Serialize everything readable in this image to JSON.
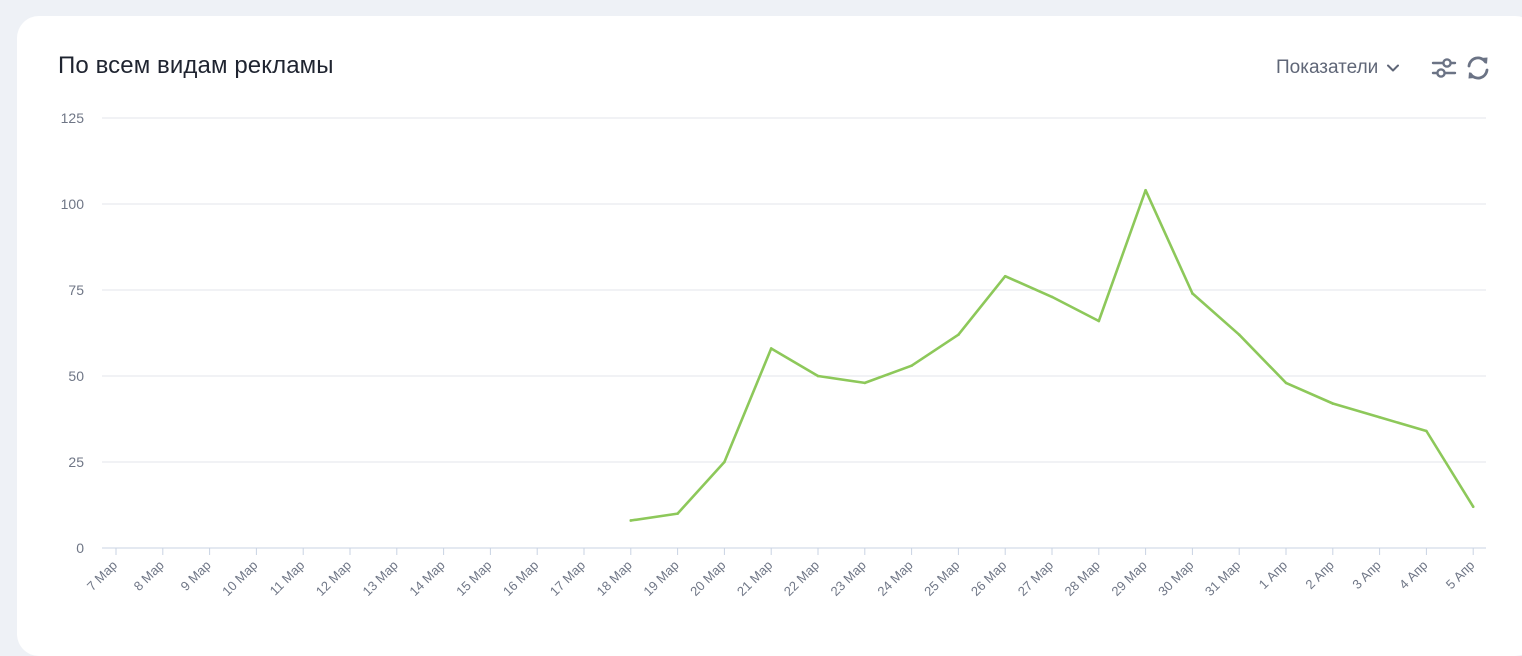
{
  "header": {
    "title": "По всем видам рекламы",
    "metrics_label": "Показатели"
  },
  "icons": {
    "chevron": "chevron-down-icon",
    "settings": "sliders-icon",
    "refresh": "refresh-icon"
  },
  "colors": {
    "line": "#8dc85a",
    "grid": "#e3e6eb",
    "tick_text": "#6f7686",
    "axis": "#c9d3e3"
  },
  "chart_data": {
    "type": "line",
    "title": "По всем видам рекламы",
    "xlabel": "",
    "ylabel": "",
    "ylim": [
      0,
      125
    ],
    "yticks": [
      "0",
      "25",
      "50",
      "75",
      "100",
      "125"
    ],
    "grid": true,
    "categories": [
      "7 Мар",
      "8 Мар",
      "9 Мар",
      "10 Мар",
      "11 Мар",
      "12 Мар",
      "13 Мар",
      "14 Мар",
      "15 Мар",
      "16 Мар",
      "17 Мар",
      "18 Мар",
      "19 Мар",
      "20 Мар",
      "21 Мар",
      "22 Мар",
      "23 Мар",
      "24 Мар",
      "25 Мар",
      "26 Мар",
      "27 Мар",
      "28 Мар",
      "29 Мар",
      "30 Мар",
      "31 Мар",
      "1 Апр",
      "2 Апр",
      "3 Апр",
      "4 Апр",
      "5 Апр"
    ],
    "series": [
      {
        "values": [
          null,
          null,
          null,
          null,
          null,
          null,
          null,
          null,
          null,
          null,
          null,
          8,
          10,
          25,
          58,
          50,
          48,
          53,
          62,
          79,
          73,
          66,
          104,
          74,
          62,
          48,
          42,
          38,
          34,
          12
        ]
      }
    ]
  }
}
